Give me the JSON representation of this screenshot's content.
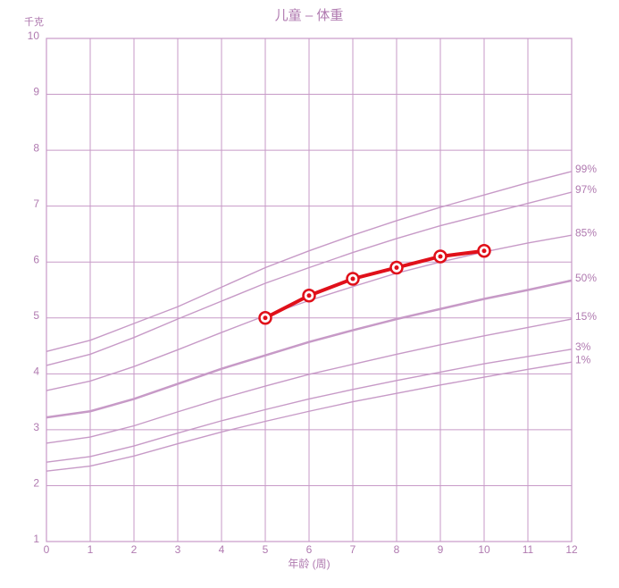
{
  "chart_data": {
    "type": "line",
    "title": "儿童 – 体重",
    "y_label": "千克",
    "x_label": "年龄 (周)",
    "x": [
      0,
      1,
      2,
      3,
      4,
      5,
      6,
      7,
      8,
      9,
      10,
      11,
      12
    ],
    "xlim": [
      0,
      12
    ],
    "xticks": [
      0,
      1,
      2,
      3,
      4,
      5,
      6,
      7,
      8,
      9,
      10,
      11,
      12
    ],
    "ylim": [
      1,
      10
    ],
    "yticks": [
      1,
      2,
      3,
      4,
      5,
      6,
      7,
      8,
      9,
      10
    ],
    "grid": true,
    "line_color": "#c79ac7",
    "child_color": "#e0101a",
    "series": [
      {
        "name": "99%",
        "values": [
          4.4,
          4.6,
          4.9,
          5.2,
          5.55,
          5.9,
          6.2,
          6.48,
          6.74,
          6.98,
          7.2,
          7.42,
          7.62
        ]
      },
      {
        "name": "97%",
        "values": [
          4.15,
          4.35,
          4.65,
          4.98,
          5.3,
          5.62,
          5.9,
          6.17,
          6.42,
          6.65,
          6.85,
          7.05,
          7.25
        ]
      },
      {
        "name": "85%",
        "values": [
          3.7,
          3.87,
          4.13,
          4.43,
          4.74,
          5.04,
          5.31,
          5.56,
          5.8,
          6.0,
          6.18,
          6.34,
          6.48
        ]
      },
      {
        "name": "50%",
        "values": [
          3.22,
          3.33,
          3.55,
          3.82,
          4.09,
          4.33,
          4.57,
          4.78,
          4.98,
          5.16,
          5.34,
          5.5,
          5.67
        ],
        "bold": true
      },
      {
        "name": "15%",
        "values": [
          2.76,
          2.87,
          3.07,
          3.32,
          3.56,
          3.78,
          3.99,
          4.17,
          4.35,
          4.52,
          4.68,
          4.83,
          4.98
        ]
      },
      {
        "name": "3%",
        "values": [
          2.42,
          2.52,
          2.71,
          2.94,
          3.16,
          3.36,
          3.55,
          3.72,
          3.88,
          4.03,
          4.18,
          4.31,
          4.44
        ]
      },
      {
        "name": "1%",
        "values": [
          2.26,
          2.35,
          2.53,
          2.75,
          2.96,
          3.15,
          3.33,
          3.5,
          3.65,
          3.8,
          3.94,
          4.08,
          4.21
        ]
      }
    ],
    "child": {
      "x": [
        5,
        6,
        7,
        8,
        9,
        10
      ],
      "values": [
        5.0,
        5.4,
        5.7,
        5.9,
        6.1,
        6.2
      ]
    }
  }
}
